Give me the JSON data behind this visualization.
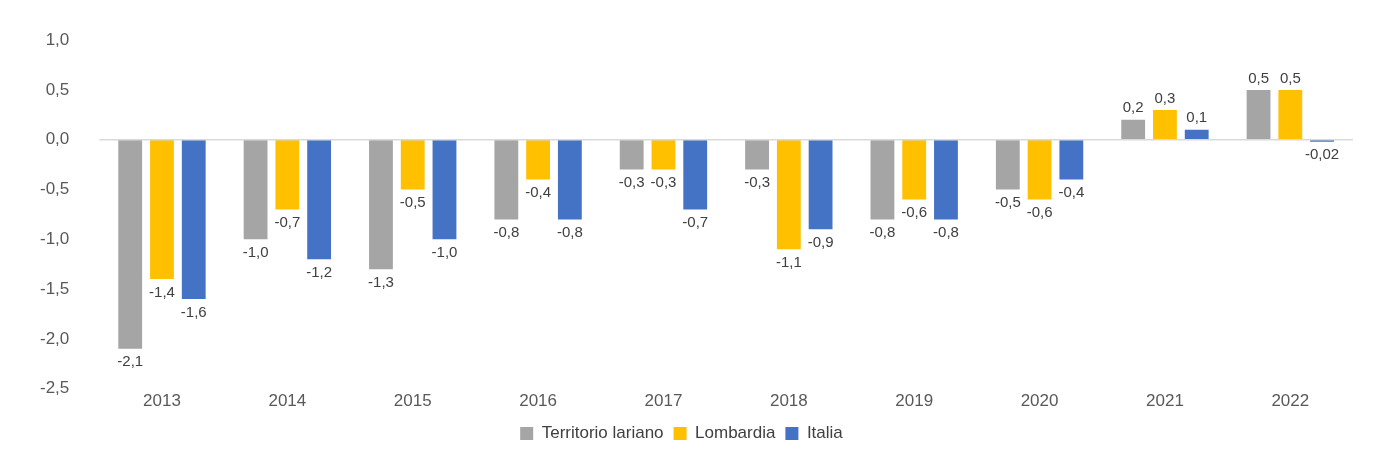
{
  "chart_data": {
    "type": "bar",
    "categories": [
      "2013",
      "2014",
      "2015",
      "2016",
      "2017",
      "2018",
      "2019",
      "2020",
      "2021",
      "2022"
    ],
    "series": [
      {
        "name": "Territorio lariano",
        "color": "#a5a5a5",
        "values": [
          -2.1,
          -1.0,
          -1.3,
          -0.8,
          -0.3,
          -0.3,
          -0.8,
          -0.5,
          0.2,
          0.5
        ],
        "value_labels": [
          "-2,1",
          "-1,0",
          "-1,3",
          "-0,8",
          "-0,3",
          "-0,3",
          "-0,8",
          "-0,5",
          "0,2",
          "0,5"
        ]
      },
      {
        "name": "Lombardia",
        "color": "#ffc000",
        "values": [
          -1.4,
          -0.7,
          -0.5,
          -0.4,
          -0.3,
          -1.1,
          -0.6,
          -0.6,
          0.3,
          0.5
        ],
        "value_labels": [
          "-1,4",
          "-0,7",
          "-0,5",
          "-0,4",
          "-0,3",
          "-1,1",
          "-0,6",
          "-0,6",
          "0,3",
          "0,5"
        ]
      },
      {
        "name": "Italia",
        "color": "#4472c4",
        "values": [
          -1.6,
          -1.2,
          -1.0,
          -0.8,
          -0.7,
          -0.9,
          -0.8,
          -0.4,
          0.1,
          -0.02
        ],
        "value_labels": [
          "-1,6",
          "-1,2",
          "-1,0",
          "-0,8",
          "-0,7",
          "-0,9",
          "-0,8",
          "-0,4",
          "0,1",
          "-0,02"
        ]
      }
    ],
    "ylim": [
      -2.5,
      1.0
    ],
    "yticks": [
      {
        "value": -2.5,
        "label": "-2,5"
      },
      {
        "value": -2.0,
        "label": "-2,0"
      },
      {
        "value": -1.5,
        "label": "-1,5"
      },
      {
        "value": -1.0,
        "label": "-1,0"
      },
      {
        "value": -0.5,
        "label": "-0,5"
      },
      {
        "value": 0,
        "label": "0,0"
      },
      {
        "value": 0.5,
        "label": "0,5"
      },
      {
        "value": 1.0,
        "label": "1,0"
      }
    ],
    "ref_lines": [
      {
        "axis": "y",
        "value": 0,
        "color": "#d9d9d9"
      }
    ],
    "grid": false,
    "legend": "bottom"
  }
}
